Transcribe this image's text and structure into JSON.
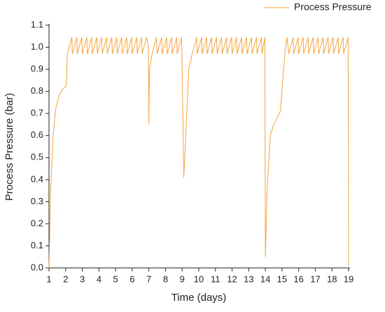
{
  "chart_data": {
    "type": "line",
    "xlabel": "Time (days)",
    "ylabel": "Process Pressure (bar)",
    "x": [
      1,
      1.1,
      1.25,
      1.4,
      1.6,
      1.8,
      2.0,
      2.05,
      2.1,
      2.37,
      2.4,
      2.67,
      2.7,
      2.97,
      3.0,
      3.27,
      3.3,
      3.57,
      3.6,
      3.87,
      3.9,
      4.17,
      4.2,
      4.47,
      4.5,
      4.77,
      4.8,
      5.07,
      5.1,
      5.37,
      5.4,
      5.67,
      5.7,
      5.97,
      6.0,
      6.27,
      6.3,
      6.57,
      6.6,
      6.87,
      6.97,
      7.0,
      7.03,
      7.2,
      7.45,
      7.5,
      7.77,
      7.8,
      8.07,
      8.1,
      8.37,
      8.4,
      8.67,
      8.7,
      8.97,
      9.1,
      9.4,
      9.6,
      9.87,
      9.9,
      10.17,
      10.2,
      10.47,
      10.5,
      10.77,
      10.8,
      11.07,
      11.1,
      11.37,
      11.4,
      11.67,
      11.7,
      11.97,
      12.0,
      12.27,
      12.3,
      12.57,
      12.6,
      12.87,
      12.9,
      13.17,
      13.2,
      13.47,
      13.5,
      13.77,
      13.8,
      13.97,
      14.0,
      14.1,
      14.3,
      14.5,
      14.9,
      15.2,
      15.3,
      15.4,
      15.67,
      15.7,
      15.97,
      16.0,
      16.27,
      16.3,
      16.57,
      16.6,
      16.87,
      16.9,
      17.17,
      17.2,
      17.47,
      17.5,
      17.77,
      17.8,
      18.07,
      18.1,
      18.37,
      18.4,
      18.67,
      18.7,
      18.97,
      19.0
    ],
    "series": [
      {
        "name": "Process Pressure",
        "color": "#f5a33c",
        "values": [
          0,
          0.35,
          0.6,
          0.72,
          0.78,
          0.81,
          0.82,
          0.84,
          0.97,
          1.045,
          0.97,
          1.045,
          0.97,
          1.045,
          0.97,
          1.045,
          0.97,
          1.045,
          0.97,
          1.045,
          0.97,
          1.045,
          0.97,
          1.045,
          0.97,
          1.045,
          0.97,
          1.045,
          0.97,
          1.045,
          0.97,
          1.045,
          0.97,
          1.045,
          0.97,
          1.045,
          0.97,
          1.045,
          0.97,
          1.045,
          1.0,
          0.65,
          0.9,
          0.97,
          1.045,
          0.97,
          1.045,
          0.97,
          1.045,
          0.97,
          1.045,
          0.97,
          1.045,
          0.97,
          1.045,
          0.41,
          0.9,
          0.97,
          1.045,
          0.97,
          1.045,
          0.97,
          1.045,
          0.97,
          1.045,
          0.97,
          1.045,
          0.97,
          1.045,
          0.97,
          1.045,
          0.97,
          1.045,
          0.97,
          1.045,
          0.97,
          1.045,
          0.97,
          1.045,
          0.97,
          1.045,
          0.97,
          1.045,
          0.97,
          1.045,
          0.97,
          1.045,
          0.05,
          0.35,
          0.6,
          0.65,
          0.71,
          1.0,
          1.045,
          0.97,
          1.045,
          0.97,
          1.045,
          0.97,
          1.045,
          0.97,
          1.045,
          0.97,
          1.045,
          0.97,
          1.045,
          0.97,
          1.045,
          0.97,
          1.045,
          0.97,
          1.045,
          0.97,
          1.045,
          0.97,
          1.045,
          0.97,
          1.045,
          0.01
        ]
      }
    ],
    "xlim": [
      1,
      19
    ],
    "xticks": [
      1,
      2,
      3,
      4,
      5,
      6,
      7,
      8,
      9,
      10,
      11,
      12,
      13,
      14,
      15,
      16,
      17,
      18,
      19
    ],
    "ylim": [
      0,
      1.1
    ],
    "yticks": [
      {
        "value": 0,
        "label": "0.0"
      },
      0.1,
      0.2,
      0.3,
      0.4,
      0.5,
      0.6,
      0.7,
      0.8,
      0.9,
      {
        "value": 1,
        "label": "1.0"
      },
      1.1
    ],
    "grid": false,
    "legend": "top-right"
  }
}
